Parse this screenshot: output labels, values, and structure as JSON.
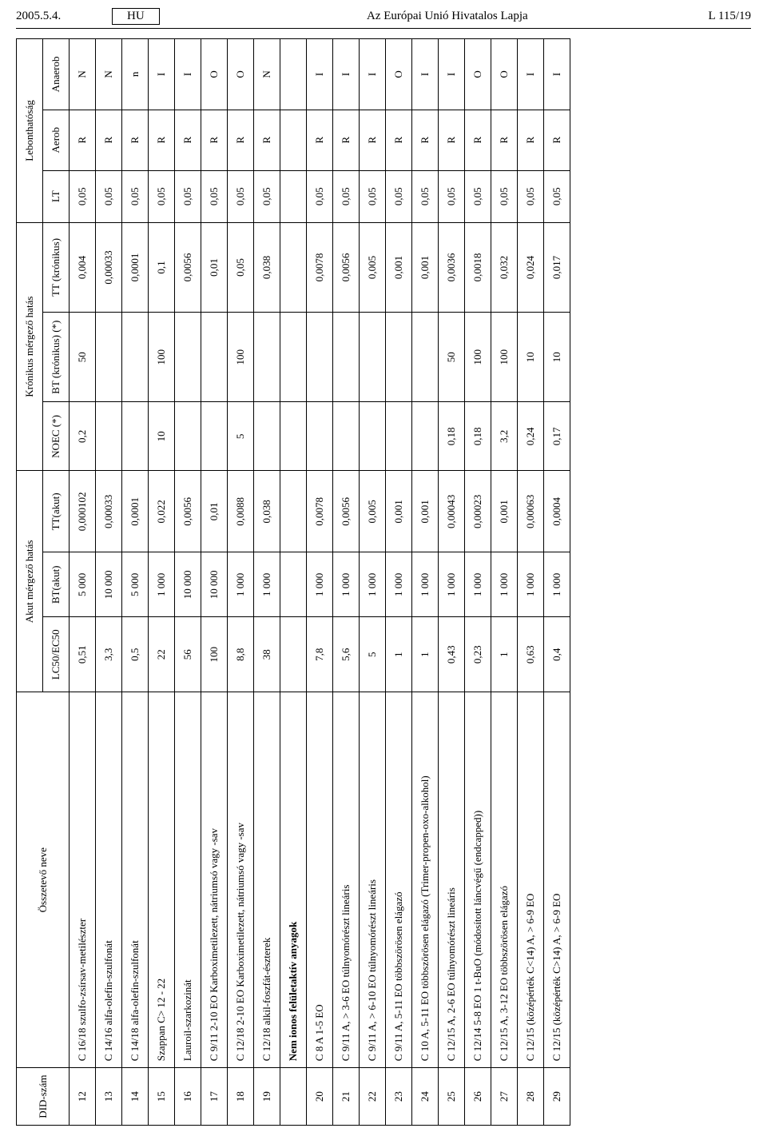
{
  "header": {
    "date": "2005.5.4.",
    "lang": "HU",
    "title": "Az Európai Unió Hivatalos Lapja",
    "page": "L 115/19"
  },
  "table": {
    "group_headers": {
      "akut": "Akut mérgező hatás",
      "kronikus": "Krónikus mérgező hatás",
      "lebont": "Lebonthatóság"
    },
    "headers": {
      "did": "DID-szám",
      "name": "Összetevő neve",
      "lc50": "LC50/EC50",
      "bt_akut": "BT(akut)",
      "tt_akut": "TT(akut)",
      "noec": "NOEC (*)",
      "bt_kron": "BT (krónikus) (*)",
      "tt_kron": "TT (krónikus)",
      "lt": "LT",
      "aerob": "Aerob",
      "anaerob": "Anaerob"
    },
    "section_label": "Nem ionos felületaktív anyagok",
    "rows_a": [
      {
        "did": "12",
        "name": "C 16/18 szulfo-zsírsav-metilészter",
        "lc50": "0,51",
        "bta": "5 000",
        "tta": "0,000102",
        "noec": "0,2",
        "btk": "50",
        "ttk": "0,004",
        "lt": "0,05",
        "aer": "R",
        "ana": "N"
      },
      {
        "did": "13",
        "name": "C 14/16 alfa-olefin-szulfonát",
        "lc50": "3,3",
        "bta": "10 000",
        "tta": "0,00033",
        "noec": "",
        "btk": "",
        "ttk": "0,00033",
        "lt": "0,05",
        "aer": "R",
        "ana": "N"
      },
      {
        "did": "14",
        "name": "C 14/18 alfa-olefin-szulfonát",
        "lc50": "0,5",
        "bta": "5 000",
        "tta": "0,0001",
        "noec": "",
        "btk": "",
        "ttk": "0,0001",
        "lt": "0,05",
        "aer": "R",
        "ana": "n"
      },
      {
        "did": "15",
        "name": "Szappan C> 12 - 22",
        "lc50": "22",
        "bta": "1 000",
        "tta": "0,022",
        "noec": "10",
        "btk": "100",
        "ttk": "0,1",
        "lt": "0,05",
        "aer": "R",
        "ana": "I"
      },
      {
        "did": "16",
        "name": "Lauroil-szarkozinát",
        "lc50": "56",
        "bta": "10 000",
        "tta": "0,0056",
        "noec": "",
        "btk": "",
        "ttk": "0,0056",
        "lt": "0,05",
        "aer": "R",
        "ana": "I"
      },
      {
        "did": "17",
        "name": "C 9/11 2-10 EO Karboximetilezett, nátriumsó vagy -sav",
        "lc50": "100",
        "bta": "10 000",
        "tta": "0,01",
        "noec": "",
        "btk": "",
        "ttk": "0,01",
        "lt": "0,05",
        "aer": "R",
        "ana": "O"
      },
      {
        "did": "18",
        "name": "C 12/18 2-10 EO Karboximetilezett, nátriumsó vagy -sav",
        "lc50": "8,8",
        "bta": "1 000",
        "tta": "0,0088",
        "noec": "5",
        "btk": "100",
        "ttk": "0,05",
        "lt": "0,05",
        "aer": "R",
        "ana": "O"
      },
      {
        "did": "19",
        "name": "C 12/18 alkil-foszfát-észterek",
        "lc50": "38",
        "bta": "1 000",
        "tta": "0,038",
        "noec": "",
        "btk": "",
        "ttk": "0,038",
        "lt": "0,05",
        "aer": "R",
        "ana": "N"
      }
    ],
    "rows_b": [
      {
        "did": "20",
        "name": "C 8 A 1-5 EO",
        "lc50": "7,8",
        "bta": "1 000",
        "tta": "0,0078",
        "noec": "",
        "btk": "",
        "ttk": "0,0078",
        "lt": "0,05",
        "aer": "R",
        "ana": "I"
      },
      {
        "did": "21",
        "name": "C 9/11 A, > 3-6 EO túlnyomórészt lineáris",
        "lc50": "5,6",
        "bta": "1 000",
        "tta": "0,0056",
        "noec": "",
        "btk": "",
        "ttk": "0,0056",
        "lt": "0,05",
        "aer": "R",
        "ana": "I"
      },
      {
        "did": "22",
        "name": "C 9/11 A, > 6-10 EO túlnyomórészt lineáris",
        "lc50": "5",
        "bta": "1 000",
        "tta": "0,005",
        "noec": "",
        "btk": "",
        "ttk": "0,005",
        "lt": "0,05",
        "aer": "R",
        "ana": "I"
      },
      {
        "did": "23",
        "name": "C 9/11 A, 5-11 EO többszörösen elágazó",
        "lc50": "1",
        "bta": "1 000",
        "tta": "0,001",
        "noec": "",
        "btk": "",
        "ttk": "0,001",
        "lt": "0,05",
        "aer": "R",
        "ana": "O"
      },
      {
        "did": "24",
        "name": "C 10 A, 5-11 EO többszörösen elágazó (Trimer-propen-oxo-alkohol)",
        "lc50": "1",
        "bta": "1 000",
        "tta": "0,001",
        "noec": "",
        "btk": "",
        "ttk": "0,001",
        "lt": "0,05",
        "aer": "R",
        "ana": "I"
      },
      {
        "did": "25",
        "name": "C 12/15 A, 2-6 EO túlnyomórészt lineáris",
        "lc50": "0,43",
        "bta": "1 000",
        "tta": "0,00043",
        "noec": "0,18",
        "btk": "50",
        "ttk": "0,0036",
        "lt": "0,05",
        "aer": "R",
        "ana": "I"
      },
      {
        "did": "26",
        "name": "C 12/14 5-8 EO 1 t-BuO (módosított láncvégű (endcapped))",
        "lc50": "0,23",
        "bta": "1 000",
        "tta": "0,00023",
        "noec": "0,18",
        "btk": "100",
        "ttk": "0,0018",
        "lt": "0,05",
        "aer": "R",
        "ana": "O"
      },
      {
        "did": "27",
        "name": "C 12/15 A, 3-12 EO többszörösen elágazó",
        "lc50": "1",
        "bta": "1 000",
        "tta": "0,001",
        "noec": "3,2",
        "btk": "100",
        "ttk": "0,032",
        "lt": "0,05",
        "aer": "R",
        "ana": "O"
      },
      {
        "did": "28",
        "name": "C 12/15 (középérték C<14) A, > 6-9 EO",
        "lc50": "0,63",
        "bta": "1 000",
        "tta": "0,00063",
        "noec": "0,24",
        "btk": "10",
        "ttk": "0,024",
        "lt": "0,05",
        "aer": "R",
        "ana": "I"
      },
      {
        "did": "29",
        "name": "C 12/15 (középérték C>14) A, > 6-9 EO",
        "lc50": "0,4",
        "bta": "1 000",
        "tta": "0,0004",
        "noec": "0,17",
        "btk": "10",
        "ttk": "0,017",
        "lt": "0,05",
        "aer": "R",
        "ana": "I"
      }
    ]
  }
}
